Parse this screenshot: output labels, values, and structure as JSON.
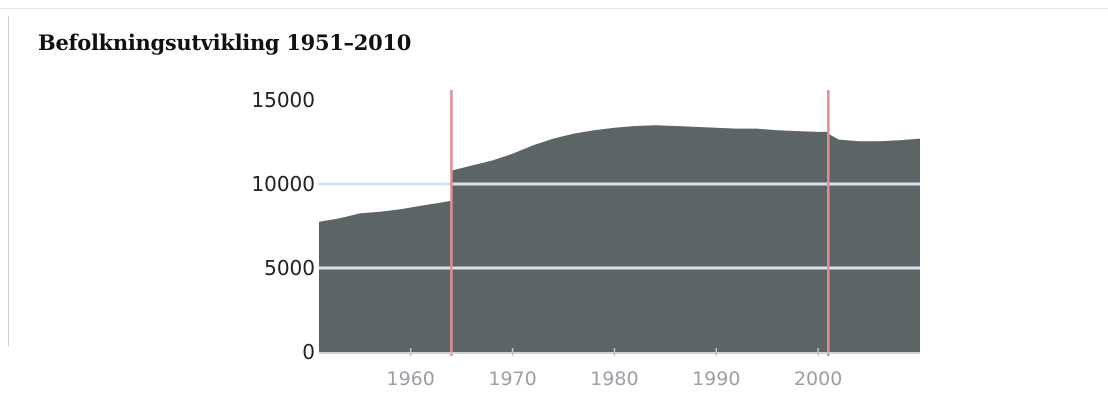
{
  "chart_data": {
    "type": "area",
    "title": "Befolkningsutvikling 1951–2010",
    "xlabel": "",
    "ylabel": "",
    "xlim": [
      1951,
      2010
    ],
    "ylim": [
      0,
      15000
    ],
    "grid": "horizontal",
    "legend": "none",
    "x_ticks": [
      "1960",
      "1970",
      "1980",
      "1990",
      "2000"
    ],
    "y_ticks": [
      "15000",
      "10000",
      "5000",
      "0"
    ],
    "series": [
      {
        "x": [
          1951,
          1953,
          1955,
          1957,
          1959,
          1961,
          1963,
          1964,
          1964,
          1966,
          1968,
          1970,
          1972,
          1974,
          1976,
          1978,
          1980,
          1982,
          1984,
          1986,
          1988,
          1990,
          1992,
          1994,
          1996,
          1998,
          2000,
          2001,
          2001,
          2002,
          2004,
          2006,
          2008,
          2010
        ],
        "y": [
          7750,
          7950,
          8250,
          8350,
          8500,
          8700,
          8900,
          9000,
          10800,
          11100,
          11400,
          11800,
          12300,
          12700,
          13000,
          13200,
          13350,
          13450,
          13500,
          13450,
          13400,
          13350,
          13300,
          13300,
          13200,
          13150,
          13100,
          13100,
          13000,
          12650,
          12550,
          12550,
          12600,
          12700
        ]
      }
    ],
    "markers_x": [
      1964,
      2001
    ],
    "colors": {
      "area": "#5d6465",
      "gridline": "#d7e3ec",
      "marker": "#e48c98",
      "tick_label": "#9aa0a5",
      "y_tick_label": "#222222",
      "axis": "#bfc4c8"
    }
  }
}
